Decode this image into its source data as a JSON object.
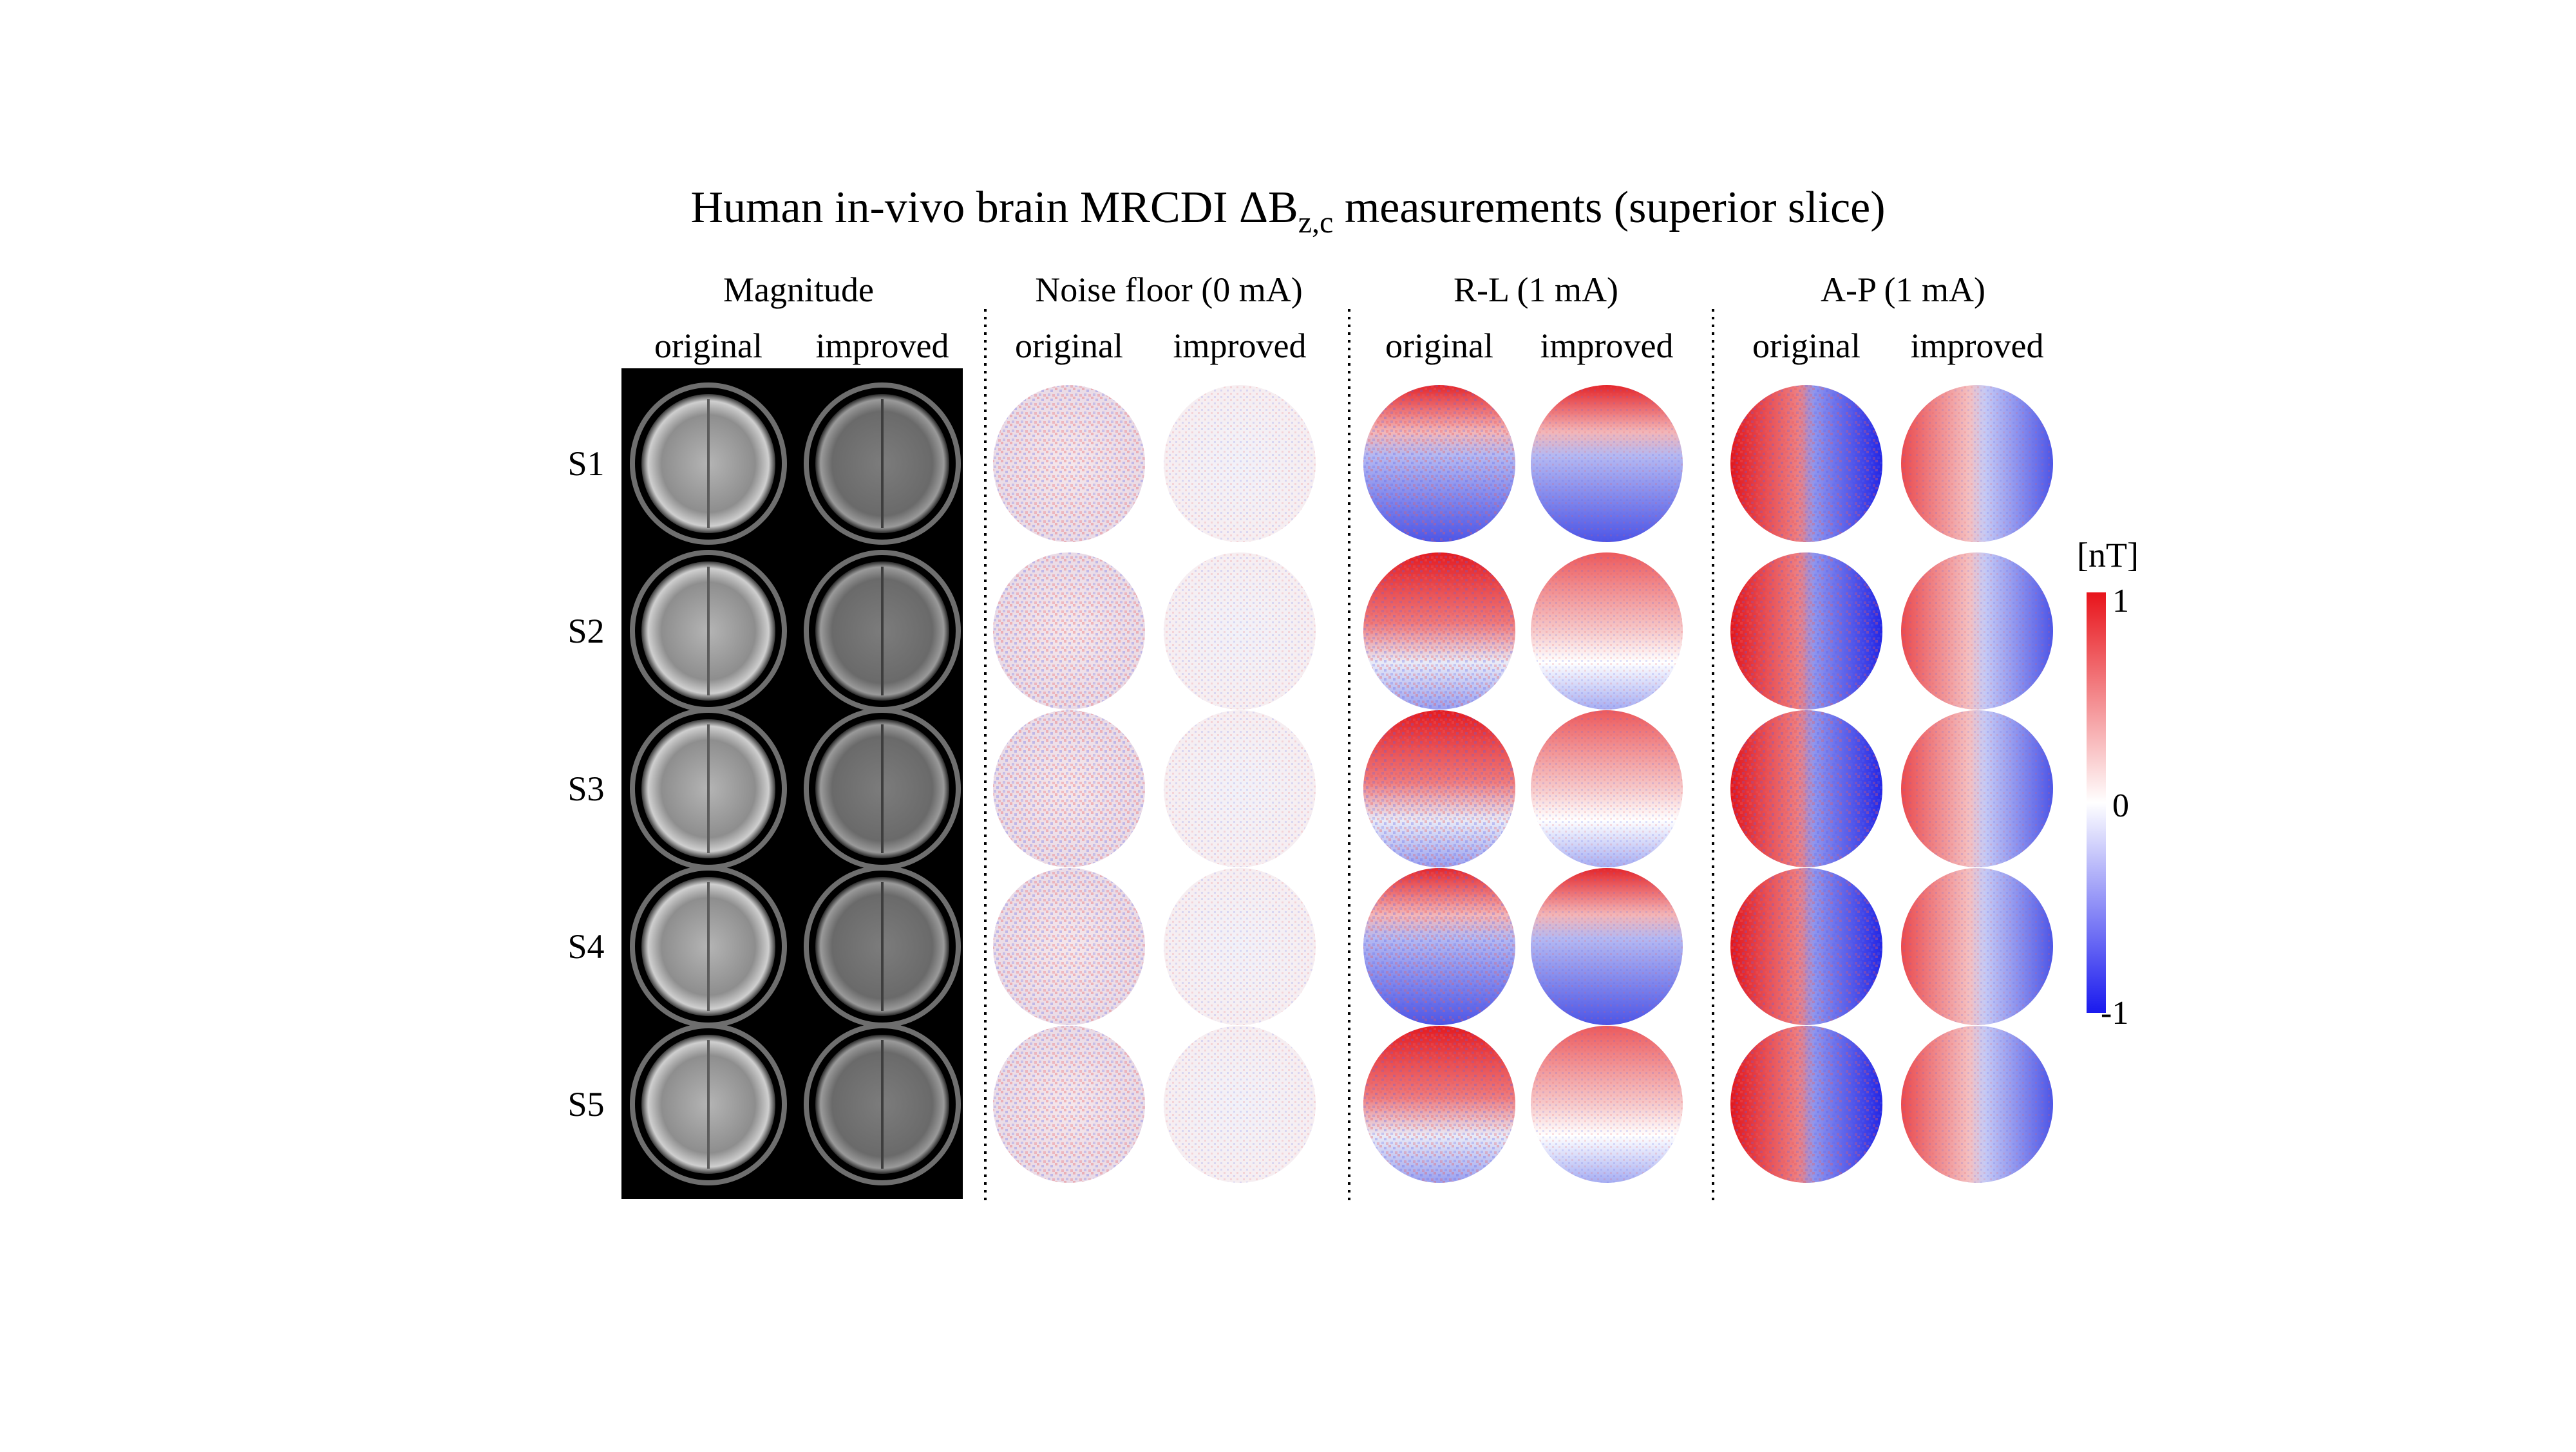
{
  "figure": {
    "title_prefix": "Human in-vivo brain MRCDI ΔB",
    "title_subscript": "z,c",
    "title_suffix": " measurements (superior slice)",
    "groups": [
      {
        "key": "magnitude",
        "label": "Magnitude"
      },
      {
        "key": "noise",
        "label": "Noise floor (0 mA)"
      },
      {
        "key": "rl",
        "label": "R-L (1 mA)"
      },
      {
        "key": "ap",
        "label": "A-P (1 mA)"
      }
    ],
    "column_labels": [
      "original",
      "improved"
    ],
    "subjects": [
      "S1",
      "S2",
      "S3",
      "S4",
      "S5"
    ],
    "colorbar": {
      "unit": "[nT]",
      "max_label": "1",
      "mid_label": "0",
      "min_label": "-1",
      "colors": {
        "positive": "#e8141b",
        "zero": "#ffffff",
        "negative": "#1a1aee"
      }
    }
  }
}
